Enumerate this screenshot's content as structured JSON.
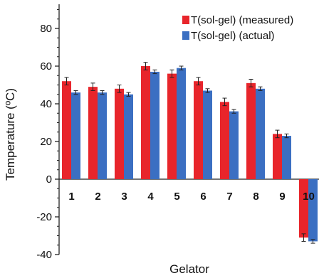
{
  "chart_data": {
    "type": "bar",
    "title": "",
    "xlabel": "Gelator",
    "ylabel": "Temperature (ºC)",
    "ylim": [
      -40,
      90
    ],
    "yticks": [
      -40,
      -20,
      0,
      20,
      40,
      60,
      80
    ],
    "ytick_labels": [
      "-40",
      "-20",
      "0",
      "20",
      "40",
      "60",
      "80"
    ],
    "categories": [
      "1",
      "2",
      "3",
      "4",
      "5",
      "6",
      "7",
      "8",
      "9",
      "10"
    ],
    "series": [
      {
        "name": "T(sol-gel) (measured)",
        "color": "#e8252b",
        "values": [
          52,
          49,
          48,
          60,
          56,
          52,
          41,
          51,
          24,
          -31
        ],
        "errors": [
          2,
          2,
          2,
          2,
          2,
          2,
          2,
          2,
          2,
          2
        ]
      },
      {
        "name": "T(sol-gel) (actual)",
        "color": "#3b6fc2",
        "values": [
          46,
          46,
          45,
          57,
          59,
          47,
          36,
          48,
          23,
          -33
        ],
        "errors": [
          1,
          1,
          1,
          1,
          1,
          1,
          1,
          1,
          1,
          1
        ]
      }
    ],
    "grid": false,
    "legend_position": "top-right",
    "category_labels_position": "just below zero line"
  }
}
